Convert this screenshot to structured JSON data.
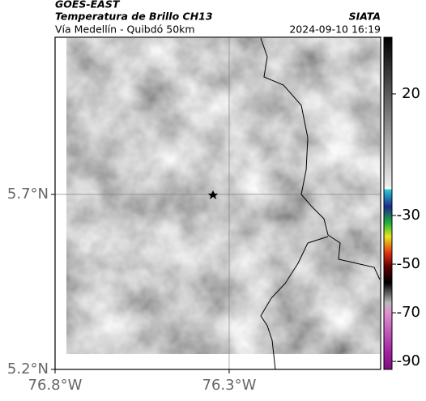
{
  "header": {
    "source": "GOES-EAST",
    "product": "Temperatura de Brillo CH13",
    "route": "Vía Medellín - Quibdó 50km",
    "agency": "SIATA",
    "timestamp": "2024-09-10 16:19"
  },
  "map": {
    "xlim": [
      -76.8,
      -75.865
    ],
    "ylim": [
      5.2,
      6.149
    ],
    "xticks": [
      {
        "value": -76.8,
        "label": "76.8°W"
      },
      {
        "value": -76.3,
        "label": "76.3°W"
      }
    ],
    "yticks": [
      {
        "value": 5.2,
        "label": "5.2°N"
      },
      {
        "value": 5.7,
        "label": "5.7°N"
      }
    ],
    "grid": true
  },
  "colorbar": {
    "clim": [
      -93.3,
      43.3
    ],
    "ticks": [
      20,
      -30,
      -50,
      -70,
      -90
    ]
  }
}
